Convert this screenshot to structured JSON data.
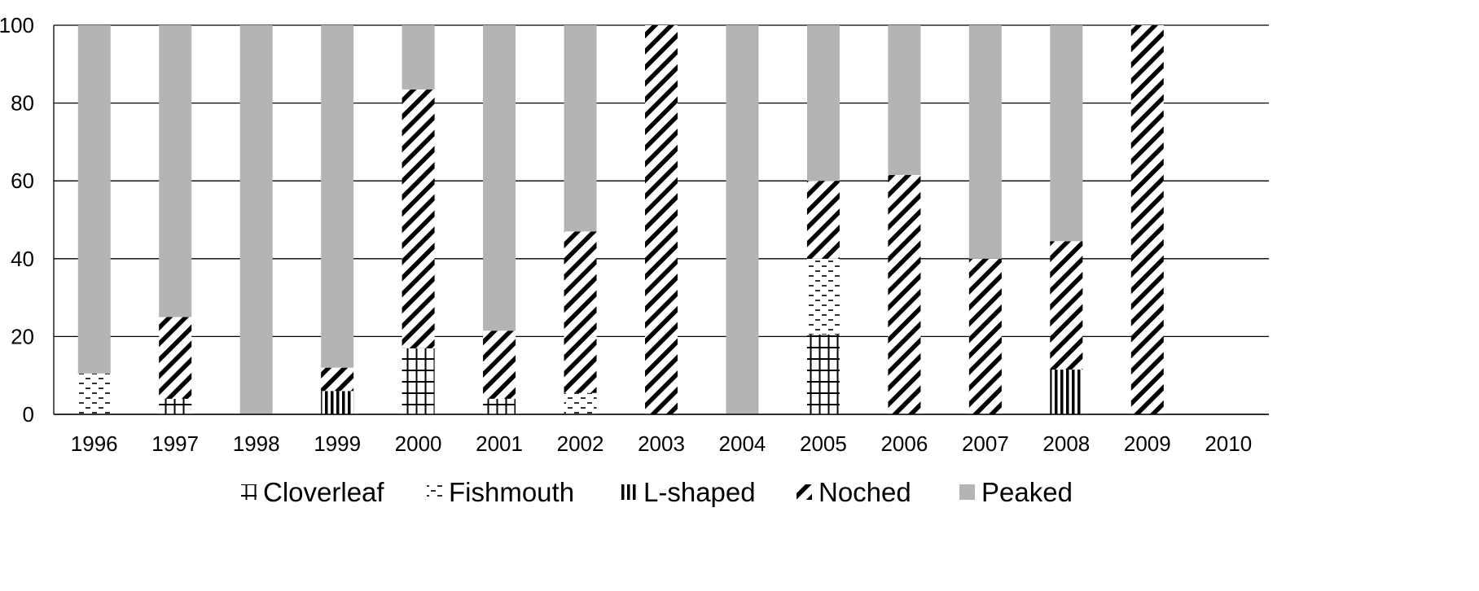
{
  "chart_data": {
    "type": "bar",
    "stacked": true,
    "title": "",
    "xlabel": "",
    "ylabel": "",
    "ylim": [
      0,
      100
    ],
    "yticks": [
      0,
      20,
      40,
      60,
      80,
      100
    ],
    "grid": true,
    "legend_position": "bottom",
    "categories": [
      "1996",
      "1997",
      "1998",
      "1999",
      "2000",
      "2001",
      "2002",
      "2003",
      "2004",
      "2005",
      "2006",
      "2007",
      "2008",
      "2009",
      "2010"
    ],
    "series": [
      {
        "name": "Cloverleaf",
        "pattern": "grid",
        "values": [
          0,
          4,
          0,
          0,
          17,
          4,
          0,
          0,
          0,
          20.5,
          0,
          0,
          0,
          0,
          0
        ]
      },
      {
        "name": "Fishmouth",
        "pattern": "dashes",
        "values": [
          10.5,
          0,
          0,
          0,
          0,
          0,
          5.5,
          0,
          0,
          19.5,
          0,
          0,
          0,
          0,
          0
        ]
      },
      {
        "name": "L-shaped",
        "pattern": "vertical",
        "values": [
          0,
          0,
          0,
          6,
          0,
          0,
          0,
          0,
          0,
          0,
          0,
          0,
          11.5,
          0,
          0
        ]
      },
      {
        "name": "Noched",
        "pattern": "diagonal",
        "values": [
          0,
          21,
          0,
          6,
          66.5,
          17.5,
          41.5,
          100,
          0,
          20,
          61.5,
          40,
          33,
          100,
          0
        ]
      },
      {
        "name": "Peaked",
        "pattern": "solid",
        "values": [
          89.5,
          75,
          100,
          88,
          16.5,
          78.5,
          53,
          0,
          100,
          40,
          38.5,
          60,
          55.5,
          0,
          0
        ]
      }
    ],
    "colors": {
      "peaked": "#b4b4b4",
      "pattern_ink": "#000000",
      "grid": "#000000",
      "background": "#ffffff"
    }
  }
}
